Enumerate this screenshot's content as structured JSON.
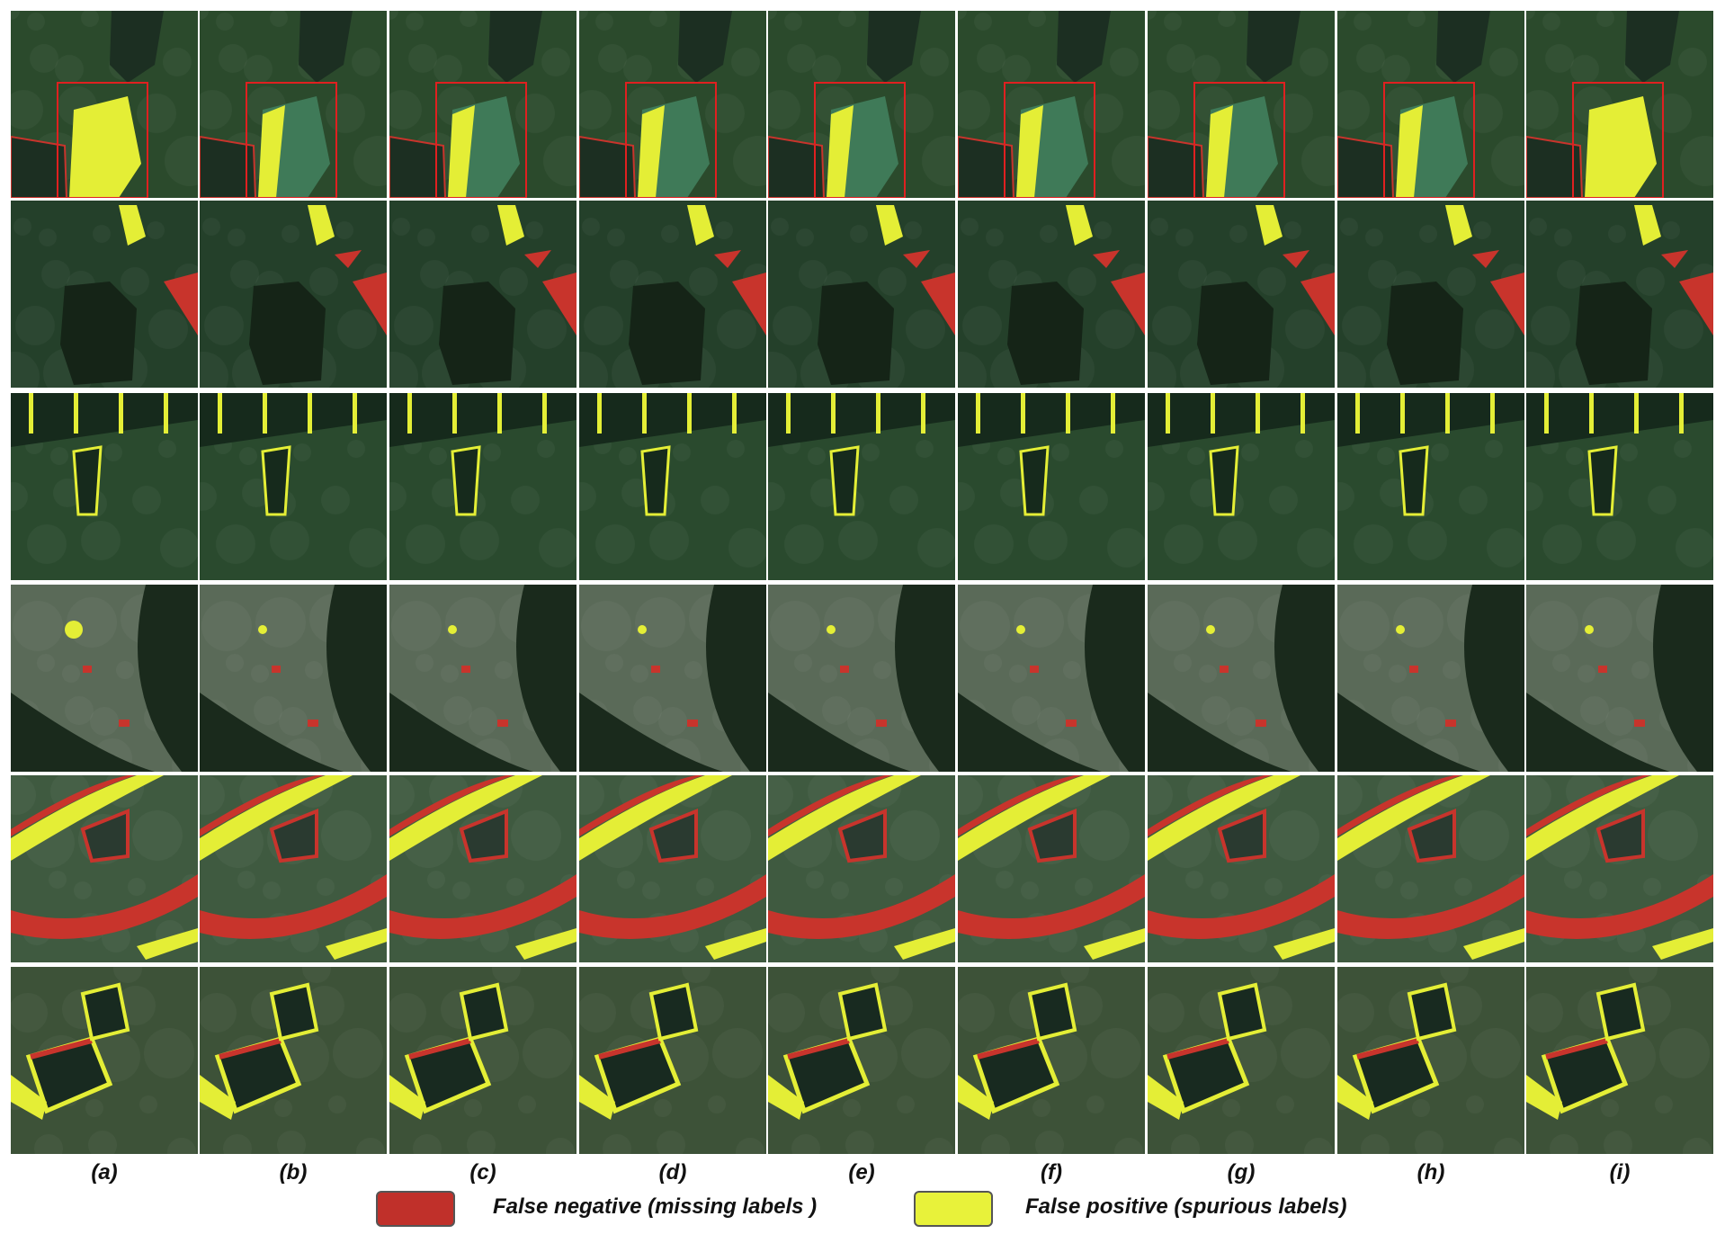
{
  "columns": [
    "(a)",
    "(b)",
    "(c)",
    "(d)",
    "(e)",
    "(f)",
    "(g)",
    "(h)",
    "(i)"
  ],
  "rows": [
    {
      "scene": "pond-with-highlight-box",
      "base": "#2b4a2c",
      "water": "#1c2f22"
    },
    {
      "scene": "forest-lake",
      "base": "#24402a",
      "water": "#152417"
    },
    {
      "scene": "terraced-ponds",
      "base": "#2a4a2e",
      "water": "#162a1c"
    },
    {
      "scene": "village-curve",
      "base": "#5a6a58",
      "water": "#1a2a1c"
    },
    {
      "scene": "river-bends",
      "base": "#3f5a40",
      "water": "#2a3a30"
    },
    {
      "scene": "field-ponds",
      "base": "#3d5238",
      "water": "#182a20"
    }
  ],
  "legend": {
    "false_negative": {
      "label": "False negative (missing labels )",
      "color": "#c0302a"
    },
    "false_positive": {
      "label": "False positive (spurious labels)",
      "color": "#e8f23a"
    }
  },
  "colors": {
    "false_negative": "#c8342c",
    "false_positive": "#e4ee36",
    "highlight_box": "#e02020"
  }
}
